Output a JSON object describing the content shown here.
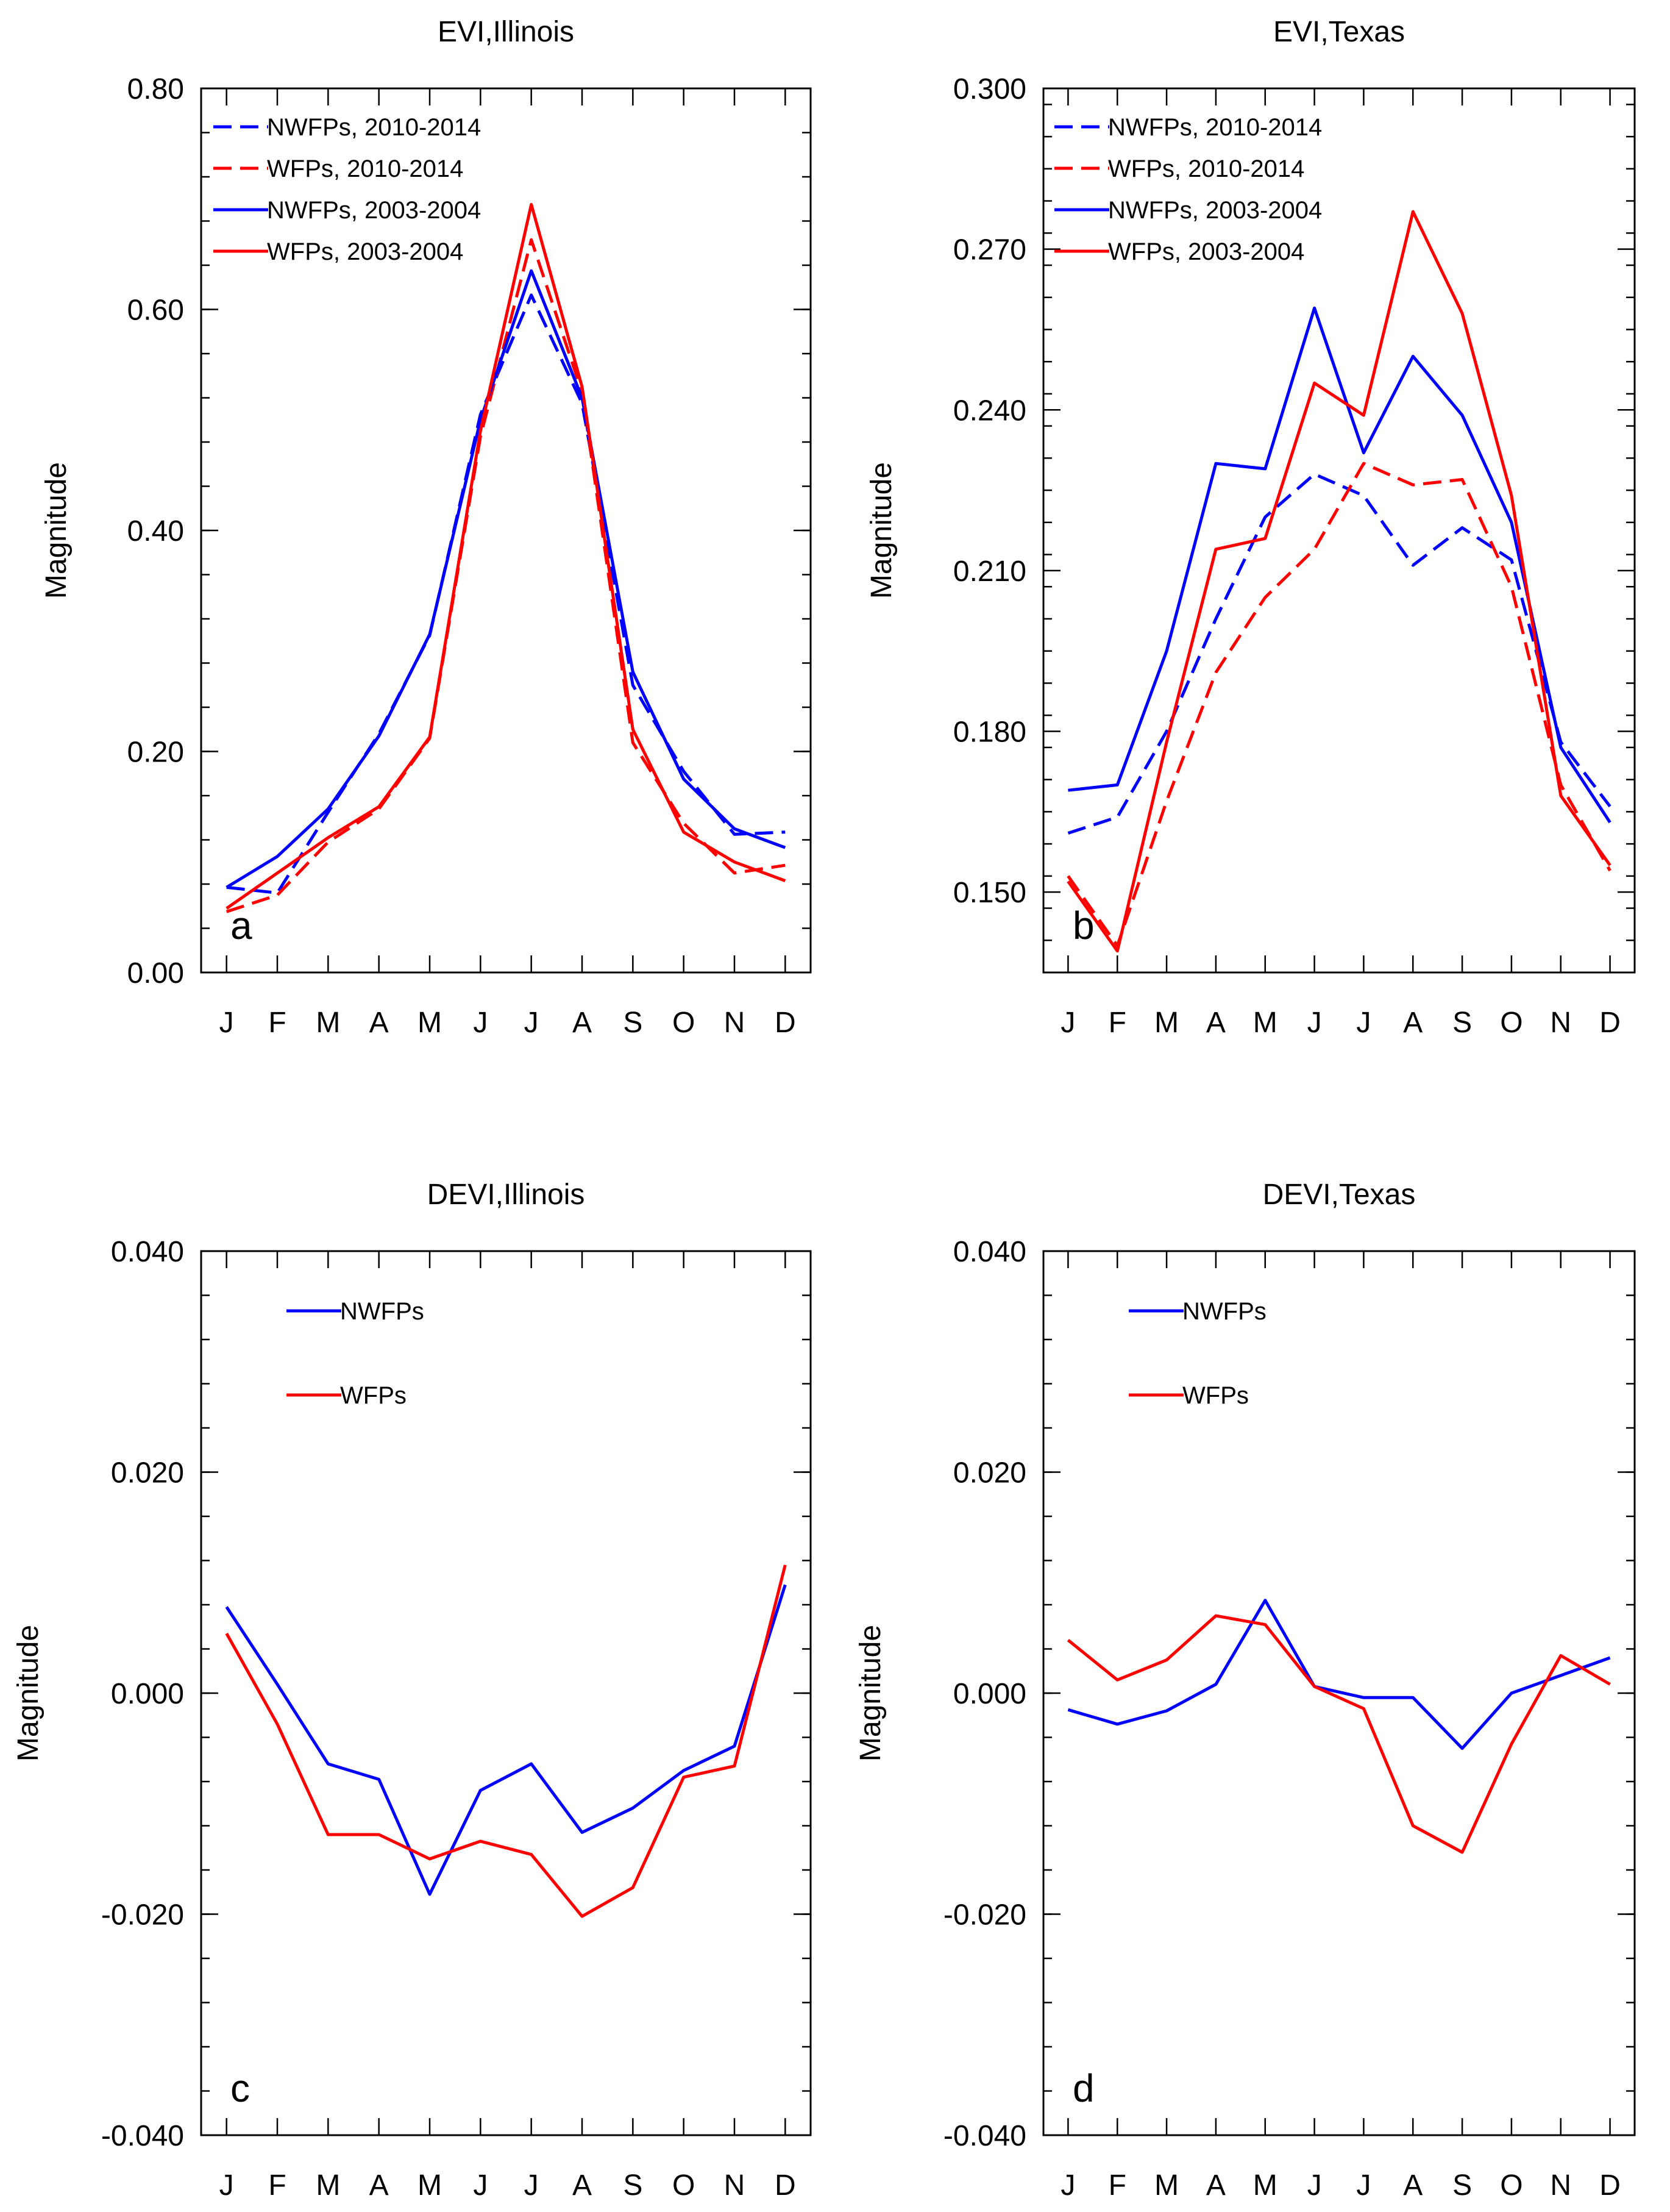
{
  "colors": {
    "nwfp": "#0000ff",
    "wfp": "#ff0000",
    "axis": "#000000"
  },
  "chart_data": [
    {
      "type": "line",
      "letter": "a",
      "title": "EVI,Illinois",
      "ylabel": "Magnitude",
      "ylim": [
        0.0,
        0.8
      ],
      "yticks": [
        0.0,
        0.2,
        0.4,
        0.6,
        0.8
      ],
      "ytick_labels": [
        "0.00",
        "0.20",
        "0.40",
        "0.60",
        "0.80"
      ],
      "yminor_step": 0.04,
      "categories": [
        "J",
        "F",
        "M",
        "A",
        "M",
        "J",
        "J",
        "A",
        "S",
        "O",
        "N",
        "D"
      ],
      "legend_position": "top-left",
      "series": [
        {
          "name": "NWFPs, 2010-2014",
          "color": "#0000ff",
          "dash": true,
          "values": [
            0.077,
            0.072,
            0.145,
            0.216,
            0.305,
            0.505,
            0.613,
            0.515,
            0.26,
            0.182,
            0.125,
            0.127
          ]
        },
        {
          "name": "WFPs, 2010-2014",
          "color": "#ff0000",
          "dash": true,
          "values": [
            0.055,
            0.07,
            0.118,
            0.148,
            0.212,
            0.485,
            0.663,
            0.525,
            0.208,
            0.135,
            0.09,
            0.097
          ]
        },
        {
          "name": "NWFPs, 2003-2004",
          "color": "#0000ff",
          "dash": false,
          "values": [
            0.077,
            0.105,
            0.148,
            0.214,
            0.306,
            0.5,
            0.635,
            0.52,
            0.272,
            0.175,
            0.13,
            0.113
          ]
        },
        {
          "name": "WFPs, 2003-2004",
          "color": "#ff0000",
          "dash": false,
          "values": [
            0.058,
            0.09,
            0.122,
            0.15,
            0.213,
            0.49,
            0.695,
            0.53,
            0.22,
            0.127,
            0.1,
            0.083
          ]
        }
      ]
    },
    {
      "type": "line",
      "letter": "b",
      "title": "EVI,Texas",
      "ylabel": "Magnitude",
      "ylim": [
        0.135,
        0.3
      ],
      "yticks": [
        0.15,
        0.18,
        0.21,
        0.24,
        0.27,
        0.3
      ],
      "ytick_labels": [
        "0.150",
        "0.180",
        "0.210",
        "0.240",
        "0.270",
        "0.300"
      ],
      "yminor_step": 0.006,
      "categories": [
        "J",
        "F",
        "M",
        "A",
        "M",
        "J",
        "J",
        "A",
        "S",
        "O",
        "N",
        "D"
      ],
      "legend_position": "top-left",
      "series": [
        {
          "name": "NWFPs, 2010-2014",
          "color": "#0000ff",
          "dash": true,
          "values": [
            0.161,
            0.164,
            0.18,
            0.201,
            0.22,
            0.228,
            0.224,
            0.211,
            0.218,
            0.212,
            0.178,
            0.166
          ]
        },
        {
          "name": "WFPs, 2010-2014",
          "color": "#ff0000",
          "dash": true,
          "values": [
            0.153,
            0.14,
            0.167,
            0.191,
            0.205,
            0.214,
            0.23,
            0.226,
            0.227,
            0.207,
            0.17,
            0.154
          ]
        },
        {
          "name": "NWFPs, 2003-2004",
          "color": "#0000ff",
          "dash": false,
          "values": [
            0.169,
            0.17,
            0.195,
            0.23,
            0.229,
            0.259,
            0.232,
            0.25,
            0.239,
            0.219,
            0.177,
            0.163
          ]
        },
        {
          "name": "WFPs, 2003-2004",
          "color": "#ff0000",
          "dash": false,
          "values": [
            0.152,
            0.139,
            0.178,
            0.214,
            0.216,
            0.245,
            0.239,
            0.277,
            0.258,
            0.224,
            0.168,
            0.155
          ]
        }
      ]
    },
    {
      "type": "line",
      "letter": "c",
      "title": "DEVI,Illinois",
      "ylabel": "Magnitude",
      "ylim": [
        -0.04,
        0.04
      ],
      "yticks": [
        -0.04,
        -0.02,
        0.0,
        0.02,
        0.04
      ],
      "ytick_labels": [
        "-0.040",
        "-0.020",
        "0.000",
        "0.020",
        "0.040"
      ],
      "yminor_step": 0.004,
      "categories": [
        "J",
        "F",
        "M",
        "A",
        "M",
        "J",
        "J",
        "A",
        "S",
        "O",
        "N",
        "D"
      ],
      "legend_position": "top-left",
      "series": [
        {
          "name": "NWFPs",
          "color": "#0000ff",
          "dash": false,
          "values": [
            0.0078,
            0.0008,
            -0.0064,
            -0.0078,
            -0.0182,
            -0.0088,
            -0.0064,
            -0.0126,
            -0.0104,
            -0.007,
            -0.0048,
            0.0098
          ]
        },
        {
          "name": "WFPs",
          "color": "#ff0000",
          "dash": false,
          "values": [
            0.0054,
            -0.0028,
            -0.0128,
            -0.0128,
            -0.015,
            -0.0134,
            -0.0146,
            -0.0202,
            -0.0176,
            -0.0076,
            -0.0066,
            0.0116
          ]
        }
      ]
    },
    {
      "type": "line",
      "letter": "d",
      "title": "DEVI,Texas",
      "ylabel": "Magnitude",
      "ylim": [
        -0.04,
        0.04
      ],
      "yticks": [
        -0.04,
        -0.02,
        0.0,
        0.02,
        0.04
      ],
      "ytick_labels": [
        "-0.040",
        "-0.020",
        "0.000",
        "0.020",
        "0.040"
      ],
      "yminor_step": 0.004,
      "categories": [
        "J",
        "F",
        "M",
        "A",
        "M",
        "J",
        "J",
        "A",
        "S",
        "O",
        "N",
        "D"
      ],
      "legend_position": "top-left",
      "series": [
        {
          "name": "NWFPs",
          "color": "#0000ff",
          "dash": false,
          "values": [
            -0.0015,
            -0.0028,
            -0.0016,
            0.0008,
            0.0084,
            0.0006,
            -0.0004,
            -0.0004,
            -0.005,
            0.0,
            0.0016,
            0.0032
          ]
        },
        {
          "name": "WFPs",
          "color": "#ff0000",
          "dash": false,
          "values": [
            0.0048,
            0.0012,
            0.003,
            0.007,
            0.0062,
            0.0006,
            -0.0014,
            -0.012,
            -0.0144,
            -0.0046,
            0.0034,
            0.0008
          ]
        }
      ]
    }
  ]
}
